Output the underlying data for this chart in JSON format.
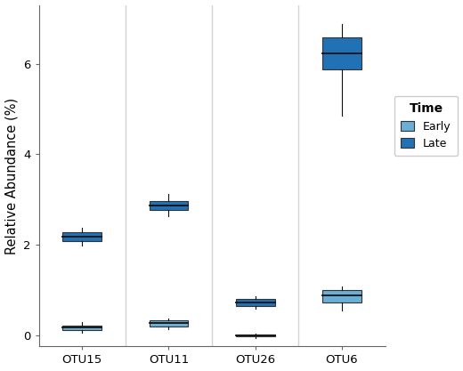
{
  "title": "",
  "ylabel": "Relative Abundance (%)",
  "xlabel": "",
  "categories": [
    "OTU15",
    "OTU11",
    "OTU26",
    "OTU6"
  ],
  "ylim": [
    -0.25,
    7.3
  ],
  "yticks": [
    0,
    2,
    4,
    6
  ],
  "color_early": "#6BAED6",
  "color_late": "#2171B5",
  "background": "#FFFFFF",
  "panel_bg": "#FFFFFF",
  "separator_color": "#D3D3D3",
  "boxplot_data": {
    "OTU15": {
      "early": {
        "whislo": 0.05,
        "q1": 0.12,
        "med": 0.17,
        "q3": 0.22,
        "whishi": 0.28
      },
      "late": {
        "whislo": 1.98,
        "q1": 2.08,
        "med": 2.18,
        "q3": 2.28,
        "whishi": 2.38
      }
    },
    "OTU11": {
      "early": {
        "whislo": 0.13,
        "q1": 0.2,
        "med": 0.26,
        "q3": 0.32,
        "whishi": 0.37
      },
      "late": {
        "whislo": 2.62,
        "q1": 2.76,
        "med": 2.87,
        "q3": 2.97,
        "whishi": 3.13
      }
    },
    "OTU26": {
      "early": {
        "whislo": -0.06,
        "q1": -0.03,
        "med": -0.01,
        "q3": 0.01,
        "whishi": 0.03
      },
      "late": {
        "whislo": 0.58,
        "q1": 0.65,
        "med": 0.73,
        "q3": 0.8,
        "whishi": 0.86
      }
    },
    "OTU6": {
      "early": {
        "whislo": 0.55,
        "q1": 0.72,
        "med": 0.88,
        "q3": 1.0,
        "whishi": 1.08
      },
      "late": {
        "whislo": 4.85,
        "q1": 5.88,
        "med": 6.22,
        "q3": 6.58,
        "whishi": 6.88
      }
    }
  },
  "legend_title": "Time",
  "legend_labels": [
    "Early",
    "Late"
  ],
  "box_width": 0.45,
  "figsize": [
    5.2,
    4.17
  ],
  "dpi": 100
}
